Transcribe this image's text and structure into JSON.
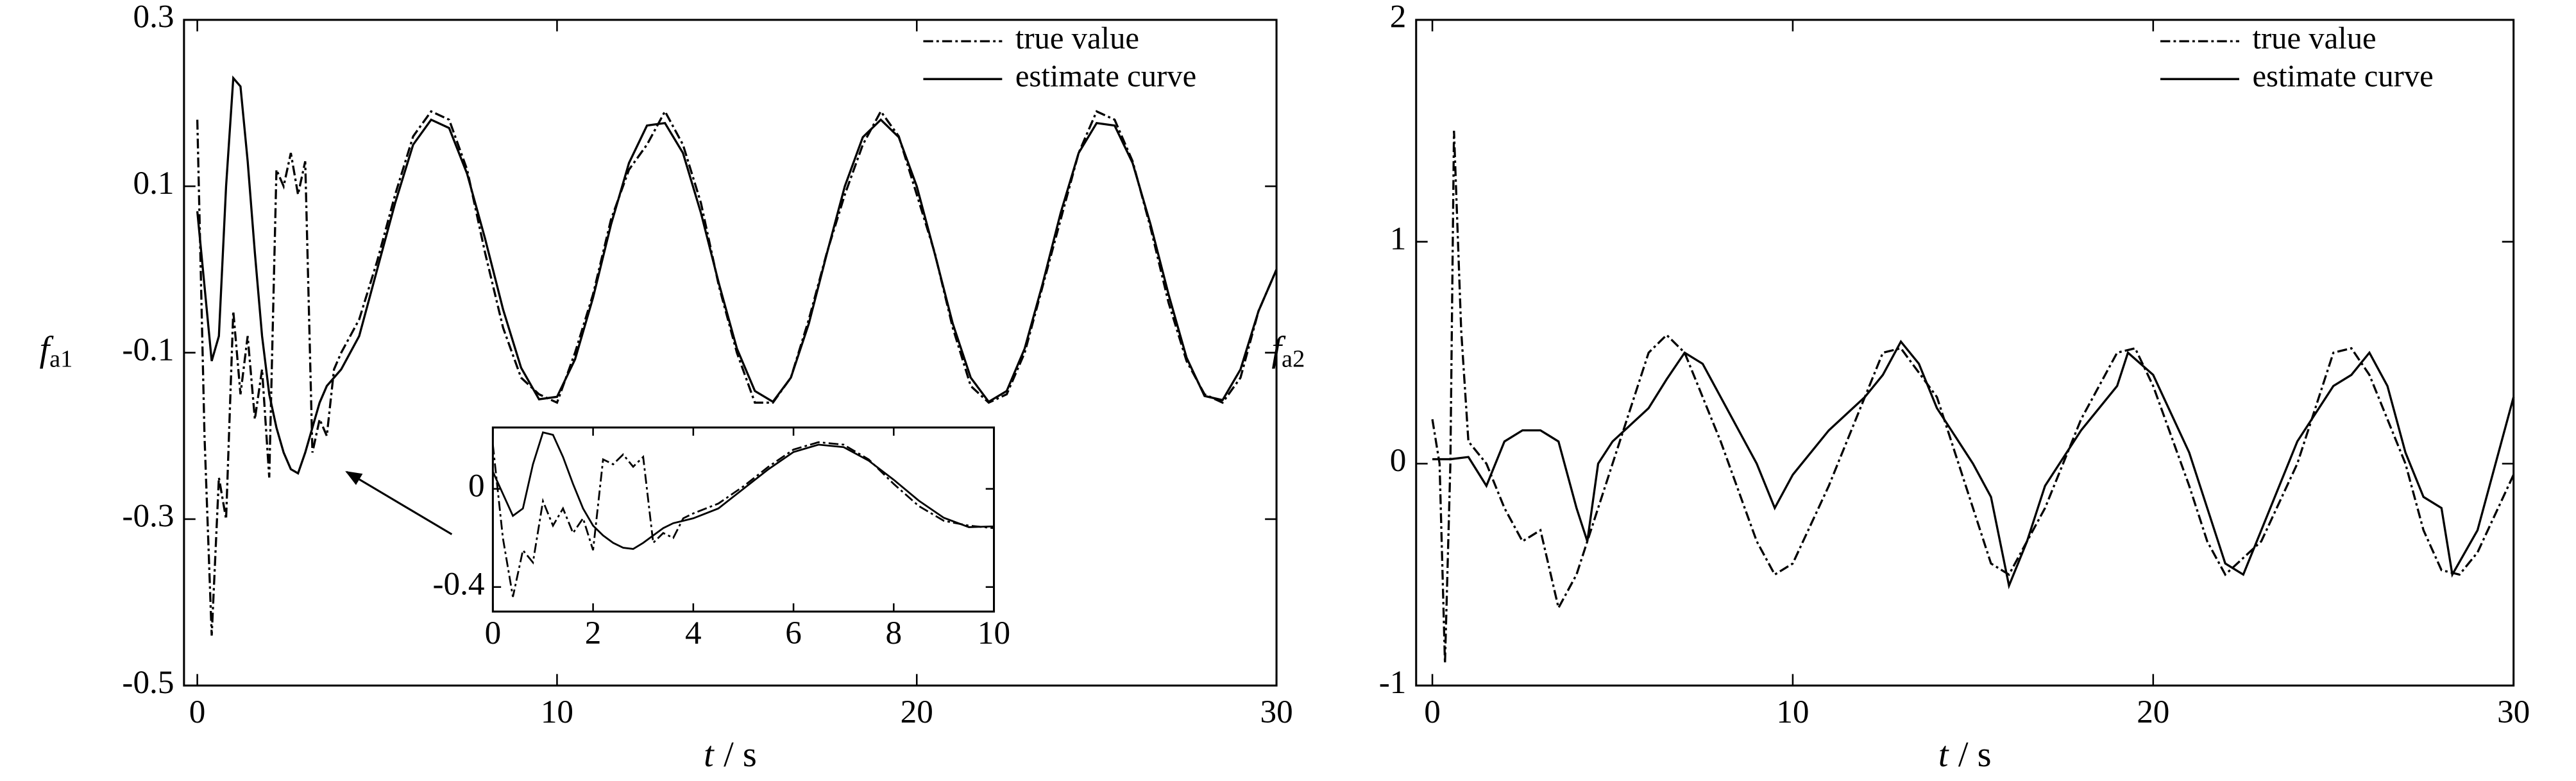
{
  "chart_data": [
    {
      "type": "line",
      "xlabel": {
        "symbol": "t",
        "unit": "/ s"
      },
      "ylabel": {
        "symbol": "f",
        "subscript": "a1"
      },
      "xlim": [
        -0.37,
        30
      ],
      "xticks": [
        0,
        10,
        20,
        30
      ],
      "ylim": [
        -0.5,
        0.3
      ],
      "yticks": [
        -0.5,
        -0.3,
        -0.1,
        0.1,
        0.3
      ],
      "legend": "upper right",
      "x": [
        0,
        0.2,
        0.4,
        0.6,
        0.8,
        1.0,
        1.2,
        1.4,
        1.6,
        1.8,
        2.0,
        2.2,
        2.4,
        2.6,
        2.8,
        3.0,
        3.2,
        3.4,
        3.6,
        3.8,
        4,
        4.5,
        5,
        5.5,
        6,
        6.5,
        7,
        7.5,
        8,
        8.5,
        9,
        9.5,
        10,
        10.5,
        11,
        11.5,
        12,
        12.5,
        13,
        13.5,
        14,
        14.5,
        15,
        15.5,
        16,
        16.5,
        17,
        17.5,
        18,
        18.5,
        19,
        19.5,
        20,
        20.5,
        21,
        21.5,
        22,
        22.5,
        23,
        23.5,
        24,
        24.5,
        25,
        25.5,
        26,
        26.5,
        27,
        27.5,
        28,
        28.5,
        29,
        29.5,
        30
      ],
      "series": [
        {
          "name": "true value",
          "color": "#000000",
          "style": "dashdot",
          "values": [
            0.18,
            -0.2,
            -0.44,
            -0.25,
            -0.3,
            -0.05,
            -0.15,
            -0.08,
            -0.18,
            -0.12,
            -0.25,
            0.12,
            0.1,
            0.14,
            0.09,
            0.13,
            -0.22,
            -0.18,
            -0.2,
            -0.12,
            -0.1,
            -0.06,
            0.01,
            0.09,
            0.16,
            0.19,
            0.18,
            0.12,
            0.02,
            -0.07,
            -0.13,
            -0.15,
            -0.16,
            -0.1,
            -0.03,
            0.06,
            0.12,
            0.15,
            0.19,
            0.15,
            0.08,
            -0.02,
            -0.1,
            -0.16,
            -0.16,
            -0.13,
            -0.06,
            0.02,
            0.09,
            0.15,
            0.19,
            0.16,
            0.09,
            0.02,
            -0.07,
            -0.14,
            -0.16,
            -0.15,
            -0.1,
            -0.02,
            0.06,
            0.14,
            0.19,
            0.18,
            0.13,
            0.05,
            -0.04,
            -0.11,
            -0.15,
            -0.16,
            -0.13,
            -0.05,
            0.0
          ]
        },
        {
          "name": "estimate curve",
          "color": "#000000",
          "style": "solid",
          "values": [
            0.07,
            -0.02,
            -0.11,
            -0.08,
            0.1,
            0.23,
            0.22,
            0.13,
            0.02,
            -0.08,
            -0.15,
            -0.19,
            -0.22,
            -0.24,
            -0.245,
            -0.22,
            -0.19,
            -0.16,
            -0.14,
            -0.13,
            -0.12,
            -0.08,
            0.0,
            0.08,
            0.15,
            0.18,
            0.17,
            0.115,
            0.037,
            -0.048,
            -0.118,
            -0.156,
            -0.153,
            -0.108,
            -0.034,
            0.054,
            0.128,
            0.173,
            0.176,
            0.14,
            0.068,
            -0.017,
            -0.095,
            -0.146,
            -0.159,
            -0.13,
            -0.065,
            0.019,
            0.1,
            0.159,
            0.18,
            0.159,
            0.1,
            0.019,
            -0.065,
            -0.13,
            -0.159,
            -0.146,
            -0.095,
            -0.017,
            0.068,
            0.14,
            0.176,
            0.173,
            0.128,
            0.054,
            -0.03,
            -0.106,
            -0.152,
            -0.157,
            -0.12,
            -0.05,
            0.0
          ]
        }
      ],
      "inset": {
        "xlim": [
          0,
          10
        ],
        "xticks": [
          0,
          2,
          4,
          6,
          8,
          10
        ],
        "ylim": [
          -0.5,
          0.25
        ],
        "yticks": [
          -0.4,
          0
        ]
      }
    },
    {
      "type": "line",
      "xlabel": {
        "symbol": "t",
        "unit": "/ s"
      },
      "ylabel": {
        "symbol": "f",
        "subscript": "a2"
      },
      "xlim": [
        -0.45,
        30
      ],
      "xticks": [
        0,
        10,
        20,
        30
      ],
      "ylim": [
        -1,
        2
      ],
      "yticks": [
        -1,
        0,
        1,
        2
      ],
      "legend": "upper right",
      "series": [
        {
          "name": "true value",
          "color": "#000000",
          "style": "dashdot",
          "x": [
            0,
            0.2,
            0.35,
            0.5,
            0.6,
            0.8,
            1.0,
            1.5,
            2,
            2.5,
            3,
            3.5,
            4,
            5,
            6,
            6.5,
            7,
            8,
            9,
            9.5,
            10,
            11,
            12,
            12.5,
            13,
            14,
            15,
            15.5,
            16,
            17,
            18,
            19,
            19.5,
            20,
            21,
            21.5,
            22,
            23,
            24,
            25,
            25.5,
            26,
            27,
            27.5,
            28,
            28.5,
            29,
            30
          ],
          "values": [
            0.2,
            0,
            -0.9,
            0.0,
            1.5,
            0.6,
            0.1,
            0.0,
            -0.2,
            -0.35,
            -0.3,
            -0.65,
            -0.5,
            0.0,
            0.5,
            0.58,
            0.5,
            0.1,
            -0.35,
            -0.5,
            -0.45,
            -0.1,
            0.3,
            0.5,
            0.52,
            0.3,
            -0.2,
            -0.45,
            -0.5,
            -0.2,
            0.2,
            0.5,
            0.52,
            0.35,
            -0.1,
            -0.35,
            -0.5,
            -0.35,
            0.0,
            0.5,
            0.52,
            0.4,
            0.0,
            -0.3,
            -0.48,
            -0.5,
            -0.4,
            -0.05
          ]
        },
        {
          "name": "estimate curve",
          "color": "#000000",
          "style": "solid",
          "x": [
            0,
            0.5,
            1,
            1.5,
            2,
            2.5,
            3,
            3.5,
            4,
            4.3,
            4.6,
            5,
            6,
            6.5,
            7,
            7.5,
            8,
            8.5,
            9,
            9.5,
            10,
            11,
            12,
            12.5,
            13,
            13.5,
            14,
            15,
            15.5,
            16,
            16.5,
            17,
            18,
            19,
            19.3,
            20,
            21,
            21.5,
            22,
            22.5,
            23,
            24,
            25,
            25.5,
            26,
            26.5,
            27,
            27.5,
            28,
            28.3,
            29,
            29.5,
            30
          ],
          "values": [
            0.02,
            0.02,
            0.03,
            -0.1,
            0.1,
            0.15,
            0.15,
            0.1,
            -0.2,
            -0.35,
            0.0,
            0.1,
            0.25,
            0.38,
            0.5,
            0.45,
            0.3,
            0.15,
            0.0,
            -0.2,
            -0.05,
            0.15,
            0.3,
            0.4,
            0.55,
            0.45,
            0.25,
            0.0,
            -0.15,
            -0.55,
            -0.35,
            -0.1,
            0.15,
            0.35,
            0.5,
            0.4,
            0.05,
            -0.2,
            -0.45,
            -0.5,
            -0.3,
            0.1,
            0.35,
            0.4,
            0.5,
            0.35,
            0.05,
            -0.15,
            -0.2,
            -0.5,
            -0.3,
            0.0,
            0.3
          ]
        }
      ]
    }
  ]
}
